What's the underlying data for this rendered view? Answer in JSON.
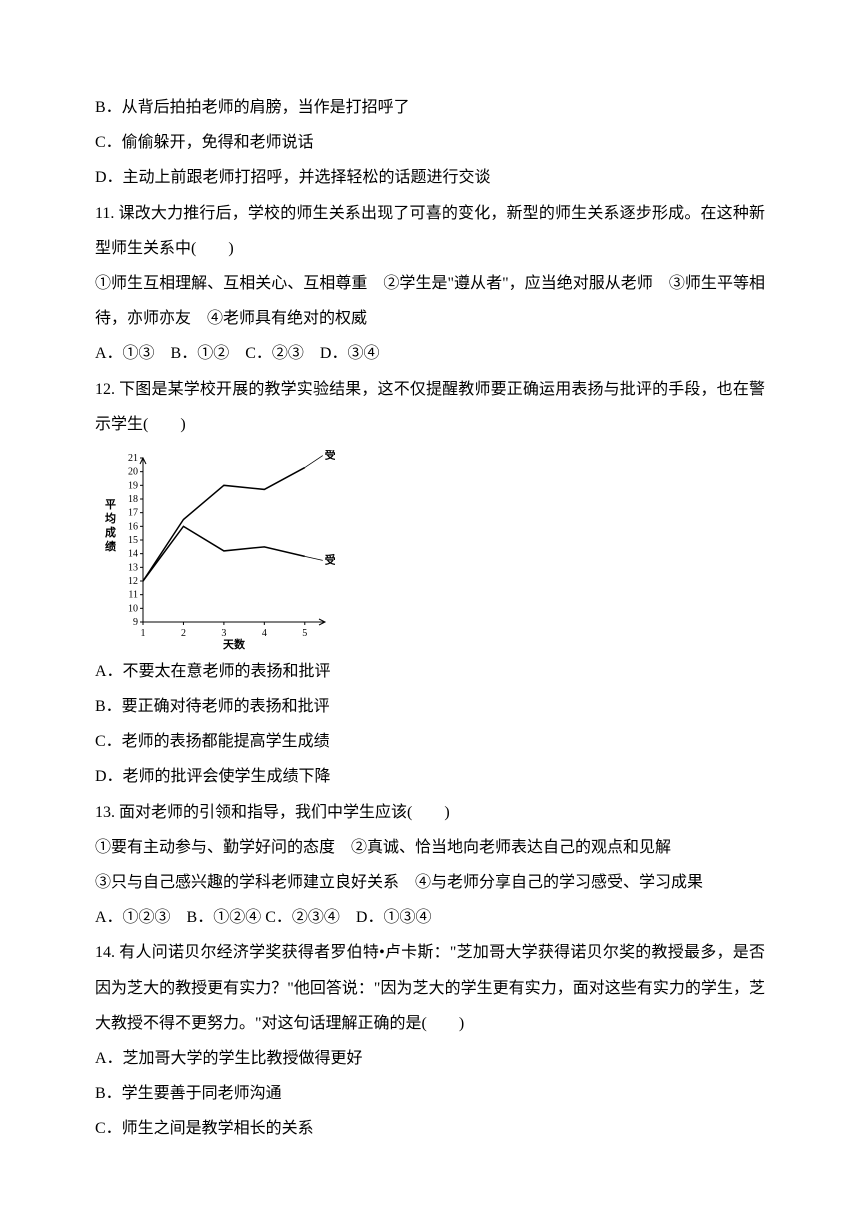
{
  "lines": {
    "optB": "B．从背后拍拍老师的肩膀，当作是打招呼了",
    "optC": "C．偷偷躲开，免得和老师说话",
    "optD": "D．主动上前跟老师打招呼，并选择轻松的话题进行交谈",
    "q11": "11. 课改大力推行后，学校的师生关系出现了可喜的变化，新型的师生关系逐步形成。在这种新型师生关系中(　　)",
    "q11sub": "①师生互相理解、互相关心、互相尊重　②学生是\"遵从者\"，应当绝对服从老师　③师生平等相待，亦师亦友　④老师具有绝对的权威",
    "q11opts": "A．①③　B．①②　C．②③　D．③④",
    "q12": "12. 下图是某学校开展的教学实验结果，这不仅提醒教师要正确运用表扬与批评的手段，也在警示学生(　　)",
    "q12A": "A．不要太在意老师的表扬和批评",
    "q12B": "B．要正确对待老师的表扬和批评",
    "q12C": "C．老师的表扬都能提高学生成绩",
    "q12D": "D．老师的批评会使学生成绩下降",
    "q13": "13. 面对老师的引领和指导，我们中学生应该(　　)",
    "q13sub": "①要有主动参与、勤学好问的态度　②真诚、恰当地向老师表达自己的观点和见解",
    "q13sub2": "③只与自己感兴趣的学科老师建立良好关系　④与老师分享自己的学习感受、学习成果",
    "q13opts": "A．①②③　B．①②④ C．②③④　D．①③④",
    "q14": "14. 有人问诺贝尔经济学奖获得者罗伯特•卢卡斯：\"芝加哥大学获得诺贝尔奖的教授最多，是否因为芝大的教授更有实力？\"他回答说：\"因为芝大的学生更有实力，面对这些有实力的学生，芝大教授不得不更努力。\"对这句话理解正确的是(　　)",
    "q14A": "A．芝加哥大学的学生比教授做得更好",
    "q14B": "B．学生要善于同老师沟通",
    "q14C": "C．师生之间是教学相长的关系"
  },
  "chart": {
    "type": "line",
    "ylabel": "平均成绩",
    "xlabel": "天数",
    "xticks": [
      1,
      2,
      3,
      4,
      5
    ],
    "yticks": [
      9,
      10,
      11,
      12,
      13,
      14,
      15,
      16,
      17,
      18,
      19,
      20,
      21
    ],
    "ylim": [
      9,
      21
    ],
    "xlim": [
      1,
      5.5
    ],
    "series": [
      {
        "label": "受表扬组",
        "color": "#000000",
        "linewidth": 1.5,
        "x": [
          1,
          2,
          3,
          4,
          5
        ],
        "y": [
          12,
          16.5,
          19,
          18.7,
          20.3
        ]
      },
      {
        "label": "受训斥组",
        "color": "#000000",
        "linewidth": 1.5,
        "x": [
          1,
          2,
          3,
          4,
          5
        ],
        "y": [
          12,
          16,
          14.2,
          14.5,
          13.8
        ]
      }
    ],
    "font": {
      "label_fontsize": 11,
      "tick_fontsize": 10
    },
    "background_color": "#ffffff",
    "axis_color": "#000000"
  }
}
